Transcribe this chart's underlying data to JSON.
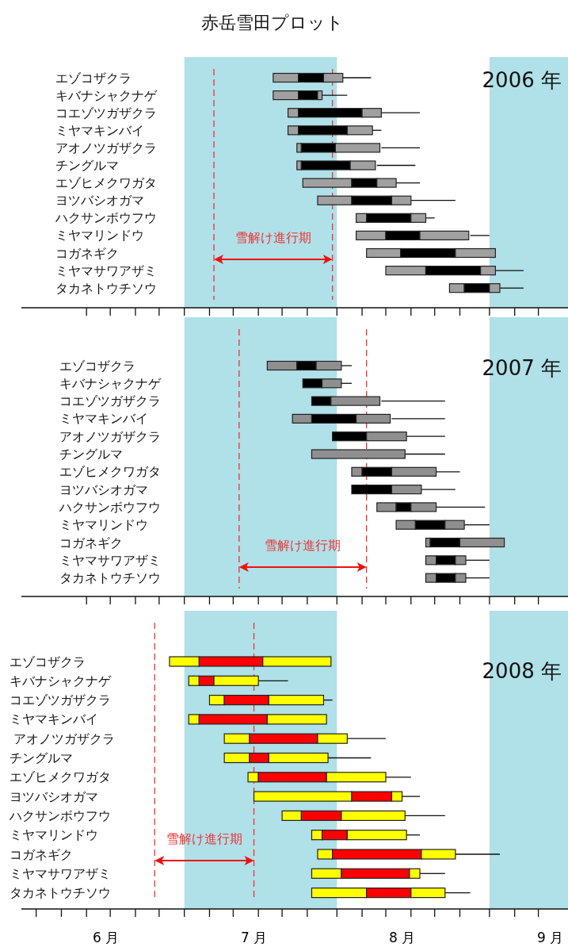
{
  "chart_data": [
    {
      "type": "bar",
      "orientation": "horizontal",
      "title": "赤岳雪田プロット",
      "annotations": [
        "2006 年",
        "雪解け進行期"
      ],
      "categories": [
        "エゾコザクラ",
        "キバナシャクナゲ",
        "コエゾツガザクラ",
        "ミヤマキンバイ",
        "アオノツガザクラ",
        "チングルマ",
        "エゾヒメクワガタ",
        "ヨツバシオガマ",
        "ハクサンボウフウ",
        "ミヤマリンドウ",
        "コガネギク",
        "ミヤマサワアザミ",
        "タカネトウチソウ"
      ],
      "xlim": [
        5.43,
        9.12
      ],
      "xticks": [
        {
          "value": 5.87,
          "label": null
        },
        {
          "value": 6.03,
          "label": null
        },
        {
          "value": 6.2,
          "label": null
        },
        {
          "value": 6.36,
          "label": null
        },
        {
          "value": 6.53,
          "label": null
        },
        {
          "value": 6.7,
          "label": null
        },
        {
          "value": 6.86,
          "label": null
        },
        {
          "value": 7.03,
          "label": null
        },
        {
          "value": 7.19,
          "label": null
        },
        {
          "value": 7.36,
          "label": null
        },
        {
          "value": 7.56,
          "label": null
        },
        {
          "value": 7.73,
          "label": null
        },
        {
          "value": 7.89,
          "label": null
        },
        {
          "value": 8.06,
          "label": null
        },
        {
          "value": 8.22,
          "label": null
        },
        {
          "value": 8.39,
          "label": null
        },
        {
          "value": 8.59,
          "label": null
        },
        {
          "value": 8.76,
          "label": null
        },
        {
          "value": 8.92,
          "label": null
        }
      ],
      "tick_labels": "y",
      "bands": [
        {
          "axis": "x",
          "from": 6.53,
          "to": 7.56,
          "color": "#b0e0e8"
        },
        {
          "axis": "x",
          "from": 8.59,
          "to": 9.12,
          "color": "#b0e0e8"
        }
      ],
      "ref_lines": [
        {
          "axis": "x",
          "value": 6.73,
          "color": "#ee3333",
          "line_style": "dashed"
        },
        {
          "axis": "x",
          "value": 7.53,
          "color": "#ee3333",
          "line_style": "dashed"
        }
      ],
      "series": [
        {
          "color": "#a0a0a0",
          "base": [
            7.13,
            7.13,
            7.23,
            7.23,
            7.29,
            7.29,
            7.33,
            7.43,
            7.69,
            7.69,
            7.76,
            7.89,
            8.32
          ],
          "values": [
            0.17,
            0.17,
            0.07,
            0.07,
            0.03,
            0.03,
            0.33,
            0.23,
            0.07,
            0.2,
            0.23,
            0.27,
            0.1
          ]
        },
        {
          "color": "#000000",
          "base": [
            7.3,
            7.3,
            7.3,
            7.3,
            7.32,
            7.32,
            7.66,
            7.66,
            7.76,
            7.89,
            7.99,
            8.16,
            8.42
          ],
          "values": [
            0.17,
            0.13,
            0.43,
            0.33,
            0.23,
            0.33,
            0.17,
            0.27,
            0.3,
            0.23,
            0.37,
            0.37,
            0.17
          ]
        },
        {
          "color": "#a0a0a0",
          "base": [
            7.47,
            7.43,
            7.73,
            7.63,
            7.55,
            7.65,
            7.83,
            7.93,
            8.06,
            8.12,
            8.36,
            8.53,
            8.59
          ],
          "values": [
            0.13,
            0.03,
            0.13,
            0.17,
            0.3,
            0.17,
            0.13,
            0.13,
            0.1,
            0.33,
            0.27,
            0.1,
            0.07
          ],
          "errors": [
            [
              7.59,
              7.79
            ],
            [
              7.46,
              7.63
            ],
            [
              7.86,
              8.12
            ],
            [
              7.79,
              7.86
            ],
            [
              7.86,
              8.12
            ],
            [
              7.83,
              8.09
            ],
            [
              7.96,
              8.12
            ],
            [
              8.06,
              8.36
            ],
            [
              8.16,
              8.22
            ],
            [
              8.46,
              8.59
            ],
            null,
            [
              8.62,
              8.82
            ],
            [
              8.66,
              8.82
            ]
          ]
        }
      ]
    },
    {
      "type": "bar",
      "orientation": "horizontal",
      "annotations": [
        "2007 年",
        "雪解け進行期"
      ],
      "categories": [
        "エゾコザクラ",
        "キバナシャクナゲ",
        "コエゾツガザクラ",
        "ミヤマキンバイ",
        "アオノツガザクラ",
        "チングルマ",
        "エゾヒメクワガタ",
        "ヨツバシオガマ",
        "ハクサンボウフウ",
        "ミヤマリンドウ",
        "コガネギク",
        "ミヤマサワアザミ",
        "タカネトウチソウ"
      ],
      "xlim": [
        5.43,
        9.12
      ],
      "xticks": [
        {
          "value": 5.87,
          "label": null
        },
        {
          "value": 6.03,
          "label": null
        },
        {
          "value": 6.2,
          "label": null
        },
        {
          "value": 6.36,
          "label": null
        },
        {
          "value": 6.53,
          "label": null
        },
        {
          "value": 6.7,
          "label": null
        },
        {
          "value": 6.86,
          "label": null
        },
        {
          "value": 7.03,
          "label": null
        },
        {
          "value": 7.19,
          "label": null
        },
        {
          "value": 7.36,
          "label": null
        },
        {
          "value": 7.56,
          "label": null
        },
        {
          "value": 7.73,
          "label": null
        },
        {
          "value": 7.89,
          "label": null
        },
        {
          "value": 8.06,
          "label": null
        },
        {
          "value": 8.22,
          "label": null
        },
        {
          "value": 8.39,
          "label": null
        },
        {
          "value": 8.59,
          "label": null
        },
        {
          "value": 8.76,
          "label": null
        },
        {
          "value": 8.92,
          "label": null
        }
      ],
      "tick_labels": "y",
      "bands": [
        {
          "axis": "x",
          "from": 6.53,
          "to": 7.56,
          "color": "#b0e0e8"
        },
        {
          "axis": "x",
          "from": 8.59,
          "to": 9.12,
          "color": "#b0e0e8"
        }
      ],
      "ref_lines": [
        {
          "axis": "x",
          "value": 6.9,
          "color": "#ee3333",
          "line_style": "dashed"
        },
        {
          "axis": "x",
          "value": 7.76,
          "color": "#ee3333",
          "line_style": "dashed"
        }
      ],
      "series": [
        {
          "color": "#8f8f8f",
          "base": [
            7.09,
            null,
            null,
            7.26,
            null,
            7.39,
            7.66,
            null,
            7.83,
            7.96,
            8.16,
            8.16,
            8.16
          ],
          "values": [
            0.2,
            null,
            null,
            0.13,
            null,
            0.63,
            0.07,
            null,
            0.13,
            0.13,
            0.03,
            0.07,
            0.07
          ],
          "errors": [
            null,
            null,
            null,
            null,
            null,
            [
              8.02,
              8.29
            ],
            null,
            null,
            null,
            null,
            null,
            null,
            null
          ]
        },
        {
          "color": "#000000",
          "base": [
            7.29,
            7.33,
            7.39,
            7.39,
            7.53,
            null,
            7.73,
            7.66,
            7.96,
            8.09,
            8.19,
            8.23,
            8.23
          ],
          "values": [
            0.13,
            0.13,
            0.13,
            0.3,
            0.23,
            null,
            0.2,
            0.27,
            0.1,
            0.2,
            0.2,
            0.13,
            0.13
          ]
        },
        {
          "color": "#8f8f8f",
          "base": [
            7.42,
            7.46,
            7.52,
            7.69,
            7.76,
            null,
            7.93,
            7.93,
            8.06,
            8.29,
            8.39,
            8.36,
            8.36
          ],
          "values": [
            0.17,
            0.13,
            0.33,
            0.23,
            0.27,
            null,
            0.3,
            0.2,
            0.17,
            0.13,
            0.3,
            0.07,
            0.07
          ],
          "errors": [
            [
              7.59,
              7.66
            ],
            [
              7.59,
              7.66
            ],
            [
              7.86,
              8.29
            ],
            [
              7.93,
              8.29
            ],
            [
              8.02,
              8.29
            ],
            null,
            [
              8.22,
              8.39
            ],
            [
              8.12,
              8.36
            ],
            [
              8.22,
              8.56
            ],
            [
              8.42,
              8.59
            ],
            null,
            [
              8.42,
              8.59
            ],
            [
              8.42,
              8.59
            ]
          ]
        }
      ]
    },
    {
      "type": "bar",
      "orientation": "horizontal",
      "annotations": [
        "2008 年",
        "雪解け進行期"
      ],
      "categories": [
        "エゾコザクラ",
        "キバナシャクナゲ",
        "コエゾツガザクラ",
        "ミヤマキンバイ",
        " アオノツガザクラ",
        "チングルマ",
        "エゾヒメクワガタ",
        "ヨツバシオガマ",
        "ハクサンボウフウ",
        "ミヤマリンドウ",
        "コガネギク",
        "ミヤマサワアザミ",
        "タカネトウチソウ"
      ],
      "xlim": [
        5.43,
        9.12
      ],
      "xticks": [
        {
          "value": 5.53,
          "label": null
        },
        {
          "value": 5.7,
          "label": null
        },
        {
          "value": 5.87,
          "label": null
        },
        {
          "value": 6,
          "label": "6 月"
        },
        {
          "value": 6.03,
          "label": null
        },
        {
          "value": 6.2,
          "label": null
        },
        {
          "value": 6.36,
          "label": null
        },
        {
          "value": 6.53,
          "label": null
        },
        {
          "value": 6.7,
          "label": null
        },
        {
          "value": 6.86,
          "label": null
        },
        {
          "value": 7,
          "label": "7 月"
        },
        {
          "value": 7.03,
          "label": null
        },
        {
          "value": 7.19,
          "label": null
        },
        {
          "value": 7.36,
          "label": null
        },
        {
          "value": 7.56,
          "label": null
        },
        {
          "value": 7.73,
          "label": null
        },
        {
          "value": 7.89,
          "label": null
        },
        {
          "value": 8,
          "label": "8 月"
        },
        {
          "value": 8.06,
          "label": null
        },
        {
          "value": 8.22,
          "label": null
        },
        {
          "value": 8.39,
          "label": null
        },
        {
          "value": 8.59,
          "label": null
        },
        {
          "value": 8.76,
          "label": null
        },
        {
          "value": 8.92,
          "label": null
        },
        {
          "value": 9,
          "label": "9 月"
        }
      ],
      "bands": [
        {
          "axis": "x",
          "from": 6.53,
          "to": 7.56,
          "color": "#b0e0e8"
        },
        {
          "axis": "x",
          "from": 8.59,
          "to": 9.12,
          "color": "#b0e0e8"
        }
      ],
      "ref_lines": [
        {
          "axis": "x",
          "value": 6.33,
          "color": "#ee3333",
          "line_style": "dashed"
        },
        {
          "axis": "x",
          "value": 7,
          "color": "#ee3333",
          "line_style": "dashed"
        }
      ],
      "series": [
        {
          "color": "#ffff00",
          "base": [
            6.43,
            6.56,
            6.7,
            6.56,
            6.8,
            6.8,
            6.96,
            7,
            7.19,
            7.39,
            7.43,
            7.39,
            7.39
          ],
          "values": [
            0.2,
            0.07,
            0.1,
            0.07,
            0.17,
            0.17,
            0.07,
            0.66,
            0.13,
            0.07,
            0.1,
            0.2,
            0.37
          ]
        },
        {
          "color": "#ff0000",
          "base": [
            6.63,
            6.63,
            6.8,
            6.63,
            6.97,
            6.97,
            7.03,
            7.66,
            7.32,
            7.46,
            7.53,
            7.59,
            7.76
          ],
          "values": [
            0.43,
            0.1,
            0.3,
            0.46,
            0.46,
            0.13,
            0.46,
            0.27,
            0.27,
            0.17,
            0.6,
            0.46,
            0.3
          ]
        },
        {
          "color": "#ffff00",
          "base": [
            7.06,
            6.73,
            7.1,
            7.09,
            7.43,
            7.1,
            7.49,
            7.93,
            7.59,
            7.63,
            8.13,
            8.05,
            8.06
          ],
          "values": [
            0.46,
            0.3,
            0.37,
            0.4,
            0.2,
            0.4,
            0.4,
            0.07,
            0.43,
            0.4,
            0.23,
            0.07,
            0.23
          ],
          "errors": [
            null,
            [
              7.03,
              7.23
            ],
            [
              7.46,
              7.53
            ],
            null,
            [
              7.63,
              7.89
            ],
            [
              7.49,
              7.79
            ],
            [
              7.89,
              8.06
            ],
            [
              7.99,
              8.12
            ],
            [
              8.02,
              8.29
            ],
            [
              8.02,
              8.12
            ],
            [
              8.36,
              8.66
            ],
            [
              8.12,
              8.29
            ],
            [
              8.29,
              8.46
            ]
          ]
        }
      ]
    }
  ]
}
